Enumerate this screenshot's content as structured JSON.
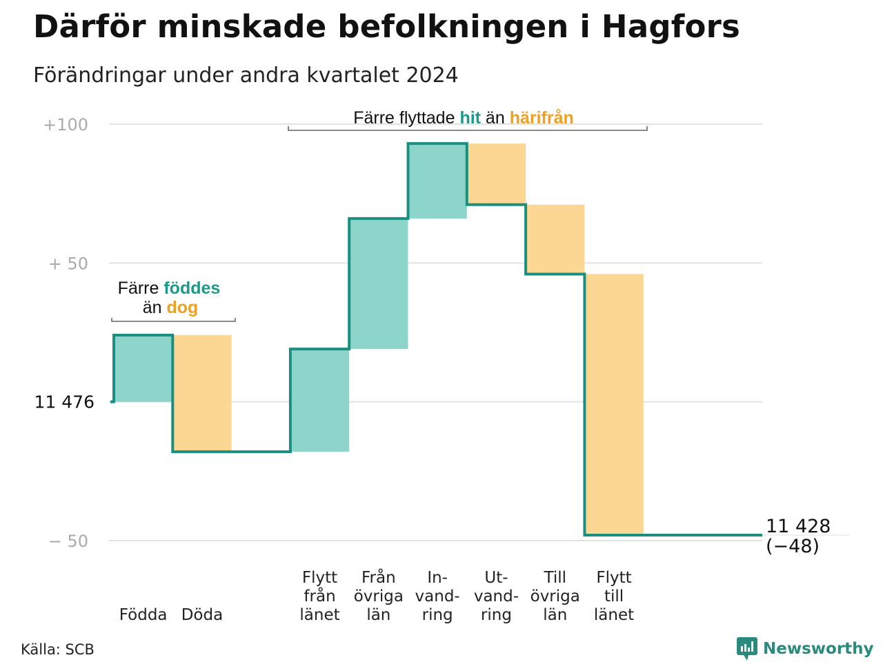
{
  "header": {
    "title": "Därför minskade befolkningen i Hagfors",
    "subtitle": "Förändringar under andra kvartalet 2024"
  },
  "footer": {
    "source": "Källa: SCB",
    "brand": "Newsworthy"
  },
  "annotations": {
    "births_line1_prefix": "Färre ",
    "births_line1_highlight": "föddes",
    "births_line2_prefix": "än ",
    "births_line2_highlight": "dog",
    "migration_prefix": "Färre flyttade ",
    "migration_hit": "hit",
    "migration_mid": " än ",
    "migration_har": "härifrån"
  },
  "colors": {
    "increase_fill": "#8dd5cb",
    "decrease_fill": "#fbd793",
    "step_line": "#1a8f80",
    "grid": "#e2e2e2",
    "hit_text": "#1a9a8a",
    "har_text": "#f0a020"
  },
  "chart_data": {
    "type": "waterfall",
    "start_label": "11  476",
    "start_value": 11476,
    "end_value": 11428,
    "end_label": "11 428",
    "end_change_label": "(−48)",
    "ylim": [
      -50,
      100
    ],
    "y_ticks": [
      {
        "value": 100,
        "label": "+100"
      },
      {
        "value": 50,
        "label": "+  50"
      },
      {
        "value": 0,
        "label": "11  476"
      },
      {
        "value": -50,
        "label": "−  50"
      }
    ],
    "steps": [
      {
        "label": [
          "Födda"
        ],
        "value": 24,
        "kind": "increase"
      },
      {
        "label": [
          "Döda"
        ],
        "value": -42,
        "kind": "decrease"
      },
      {
        "label": [],
        "value": 0,
        "kind": "spacer"
      },
      {
        "label": [
          "Flytt",
          "från",
          "länet"
        ],
        "value": 37,
        "kind": "increase"
      },
      {
        "label": [
          "Från",
          "övriga",
          "län"
        ],
        "value": 47,
        "kind": "increase"
      },
      {
        "label": [
          "In-",
          "vand-",
          "ring"
        ],
        "value": 27,
        "kind": "increase"
      },
      {
        "label": [
          "Ut-",
          "vand-",
          "ring"
        ],
        "value": -22,
        "kind": "decrease"
      },
      {
        "label": [
          "Till",
          "övriga",
          "län"
        ],
        "value": -25,
        "kind": "decrease"
      },
      {
        "label": [
          "Flytt",
          "till",
          "länet"
        ],
        "value": -94,
        "kind": "decrease"
      }
    ]
  }
}
